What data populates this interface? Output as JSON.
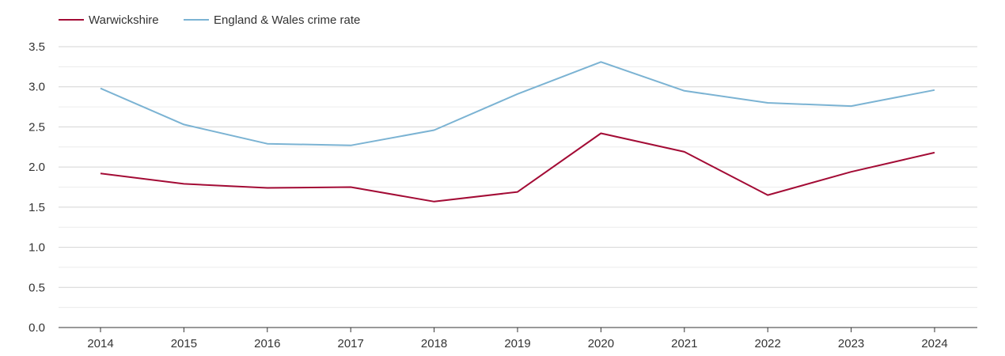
{
  "chart_data": {
    "type": "line",
    "title": "",
    "xlabel": "",
    "ylabel": "",
    "categories": [
      "2014",
      "2015",
      "2016",
      "2017",
      "2018",
      "2019",
      "2020",
      "2021",
      "2022",
      "2023",
      "2024"
    ],
    "ylim": [
      0,
      3.5
    ],
    "yticks": [
      "0.0",
      "0.5",
      "1.0",
      "1.5",
      "2.0",
      "2.5",
      "3.0",
      "3.5"
    ],
    "grid": true,
    "legend_position": "top-left",
    "series": [
      {
        "name": "Warwickshire",
        "color": "#a30b35",
        "values": [
          1.92,
          1.79,
          1.74,
          1.75,
          1.57,
          1.69,
          2.42,
          2.19,
          1.65,
          1.94,
          2.18
        ]
      },
      {
        "name": "England & Wales crime rate",
        "color": "#7bb3d3",
        "values": [
          2.98,
          2.53,
          2.29,
          2.27,
          2.46,
          2.91,
          3.31,
          2.95,
          2.8,
          2.76,
          2.96
        ]
      }
    ]
  }
}
